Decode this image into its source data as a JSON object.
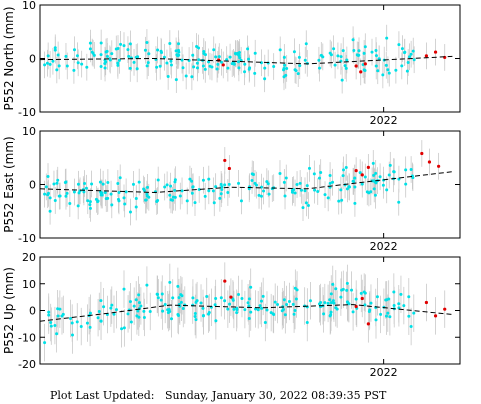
{
  "colors": {
    "point": "#00e0e6",
    "outlier": "#e00000",
    "errorbar": "#c8c8c8",
    "trend": "#000000"
  },
  "chart_data": [
    {
      "type": "scatter",
      "ylabel": "P552 North (mm)",
      "ylim": [
        -10,
        10
      ],
      "yticks": [
        10,
        0,
        -10
      ],
      "xlim": [
        2019.75,
        2022.5
      ],
      "xticks": [
        {
          "value": 2022.0,
          "label": "2022"
        }
      ],
      "x_tick_label_shown": true,
      "error_bar_mm": 2.5,
      "trend": {
        "x": [
          2019.75,
          2020.5,
          2021.0,
          2021.5,
          2022.45
        ],
        "y": [
          -0.2,
          0.0,
          -0.5,
          -1.0,
          0.4
        ]
      },
      "series": [
        {
          "role": "data",
          "points": [
            [
              2019.78,
              -1.2
            ],
            [
              2019.85,
              2.0
            ],
            [
              2019.92,
              0.4
            ],
            [
              2020.0,
              -0.8
            ],
            [
              2020.08,
              1.8
            ],
            [
              2020.15,
              -1.5
            ],
            [
              2020.22,
              0.9
            ],
            [
              2020.3,
              2.4
            ],
            [
              2020.38,
              0.2
            ],
            [
              2020.45,
              3.0
            ],
            [
              2020.52,
              1.6
            ],
            [
              2020.6,
              2.8
            ],
            [
              2020.68,
              -0.3
            ],
            [
              2020.75,
              0.6
            ],
            [
              2020.82,
              -1.4
            ],
            [
              2020.9,
              0.3
            ],
            [
              2020.98,
              -1.8
            ],
            [
              2021.05,
              -0.6
            ],
            [
              2021.12,
              -2.0
            ],
            [
              2021.2,
              -0.8
            ],
            [
              2021.28,
              -1.5
            ],
            [
              2021.35,
              0.2
            ],
            [
              2021.42,
              -2.1
            ],
            [
              2021.5,
              -0.9
            ],
            [
              2021.58,
              -1.8
            ],
            [
              2021.65,
              1.0
            ],
            [
              2021.72,
              -0.5
            ],
            [
              2021.8,
              3.5
            ],
            [
              2021.88,
              2.2
            ],
            [
              2021.95,
              1.5
            ],
            [
              2022.02,
              3.8
            ],
            [
              2022.1,
              2.6
            ],
            [
              2022.18,
              0.8
            ]
          ]
        },
        {
          "role": "outlier",
          "points": [
            [
              2020.92,
              -0.3
            ],
            [
              2020.95,
              -1.2
            ],
            [
              2021.82,
              -1.4
            ],
            [
              2021.85,
              -2.5
            ],
            [
              2021.88,
              -1.0
            ],
            [
              2022.28,
              0.5
            ],
            [
              2022.34,
              1.2
            ],
            [
              2022.4,
              0.2
            ]
          ]
        }
      ]
    },
    {
      "type": "scatter",
      "ylabel": "P552 East (mm)",
      "ylim": [
        -10,
        10
      ],
      "yticks": [
        10,
        0,
        -10
      ],
      "xlim": [
        2019.75,
        2022.5
      ],
      "xticks": [
        {
          "value": 2022.0,
          "label": "2022"
        }
      ],
      "x_tick_label_shown": true,
      "error_bar_mm": 2.5,
      "trend": {
        "x": [
          2019.75,
          2020.5,
          2021.0,
          2021.5,
          2022.45
        ],
        "y": [
          -0.8,
          -1.5,
          -0.5,
          -0.8,
          2.4
        ]
      },
      "series": [
        {
          "role": "data",
          "points": [
            [
              2019.78,
              -1.8
            ],
            [
              2019.85,
              -3.0
            ],
            [
              2019.92,
              -2.2
            ],
            [
              2020.0,
              -4.0
            ],
            [
              2020.08,
              -3.2
            ],
            [
              2020.15,
              -1.6
            ],
            [
              2020.22,
              -3.8
            ],
            [
              2020.3,
              -2.5
            ],
            [
              2020.38,
              -4.2
            ],
            [
              2020.45,
              -1.8
            ],
            [
              2020.52,
              -3.0
            ],
            [
              2020.6,
              -2.0
            ],
            [
              2020.68,
              -1.2
            ],
            [
              2020.75,
              -0.5
            ],
            [
              2020.82,
              0.8
            ],
            [
              2020.9,
              -0.4
            ],
            [
              2020.98,
              -1.5
            ],
            [
              2021.05,
              0.2
            ],
            [
              2021.12,
              -0.8
            ],
            [
              2021.2,
              -2.2
            ],
            [
              2021.28,
              -0.6
            ],
            [
              2021.35,
              0.4
            ],
            [
              2021.42,
              -1.6
            ],
            [
              2021.5,
              -0.2
            ],
            [
              2021.58,
              1.2
            ],
            [
              2021.65,
              0.2
            ],
            [
              2021.72,
              -1.0
            ],
            [
              2021.8,
              0.6
            ],
            [
              2021.88,
              1.4
            ],
            [
              2021.95,
              0.3
            ],
            [
              2022.02,
              -1.0
            ],
            [
              2022.1,
              1.0
            ],
            [
              2022.18,
              2.8
            ]
          ]
        },
        {
          "role": "outlier",
          "points": [
            [
              2020.96,
              4.5
            ],
            [
              2020.99,
              3.0
            ],
            [
              2021.82,
              2.6
            ],
            [
              2021.86,
              1.8
            ],
            [
              2021.9,
              3.2
            ],
            [
              2022.25,
              5.8
            ],
            [
              2022.3,
              4.2
            ],
            [
              2022.36,
              3.4
            ]
          ]
        }
      ]
    },
    {
      "type": "scatter",
      "ylabel": "P552 Up (mm)",
      "ylim": [
        -20,
        20
      ],
      "yticks": [
        20,
        10,
        0,
        -10,
        -20
      ],
      "xlim": [
        2019.75,
        2022.5
      ],
      "xticks": [
        {
          "value": 2022.0,
          "label": "2022"
        }
      ],
      "x_tick_label_shown": true,
      "error_bar_mm": 7.0,
      "trend": {
        "x": [
          2019.75,
          2020.2,
          2020.6,
          2021.2,
          2021.8,
          2022.45
        ],
        "y": [
          -4.0,
          -1.0,
          2.0,
          1.0,
          2.2,
          -1.5
        ]
      },
      "series": [
        {
          "role": "data",
          "points": [
            [
              2019.78,
              -12.0
            ],
            [
              2019.82,
              -4.5
            ],
            [
              2019.88,
              0.5
            ],
            [
              2019.95,
              -3.0
            ],
            [
              2020.02,
              -6.0
            ],
            [
              2020.08,
              -1.0
            ],
            [
              2020.15,
              -4.0
            ],
            [
              2020.22,
              2.0
            ],
            [
              2020.3,
              8.0
            ],
            [
              2020.38,
              4.0
            ],
            [
              2020.45,
              9.5
            ],
            [
              2020.52,
              6.0
            ],
            [
              2020.6,
              10.5
            ],
            [
              2020.68,
              5.5
            ],
            [
              2020.75,
              2.0
            ],
            [
              2020.82,
              -2.0
            ],
            [
              2020.9,
              4.5
            ],
            [
              2020.98,
              0.5
            ],
            [
              2021.05,
              6.0
            ],
            [
              2021.12,
              -3.0
            ],
            [
              2021.2,
              3.5
            ],
            [
              2021.28,
              -1.5
            ],
            [
              2021.35,
              4.0
            ],
            [
              2021.42,
              0.0
            ],
            [
              2021.5,
              -4.5
            ],
            [
              2021.58,
              2.5
            ],
            [
              2021.65,
              -2.0
            ],
            [
              2021.72,
              5.0
            ],
            [
              2021.8,
              -0.5
            ],
            [
              2021.88,
              6.5
            ],
            [
              2021.95,
              -3.5
            ],
            [
              2022.02,
              4.0
            ],
            [
              2022.1,
              1.0
            ],
            [
              2022.18,
              -6.0
            ]
          ]
        },
        {
          "role": "outlier",
          "points": [
            [
              2020.96,
              11.0
            ],
            [
              2021.0,
              5.0
            ],
            [
              2021.82,
              1.5
            ],
            [
              2021.86,
              4.5
            ],
            [
              2021.9,
              -5.0
            ],
            [
              2022.28,
              3.0
            ],
            [
              2022.34,
              -2.0
            ],
            [
              2022.4,
              0.5
            ]
          ]
        }
      ]
    }
  ],
  "footer": {
    "label": "Plot Last Updated:",
    "timestamp": "Sunday, January 30, 2022 08:39:35 PST"
  }
}
